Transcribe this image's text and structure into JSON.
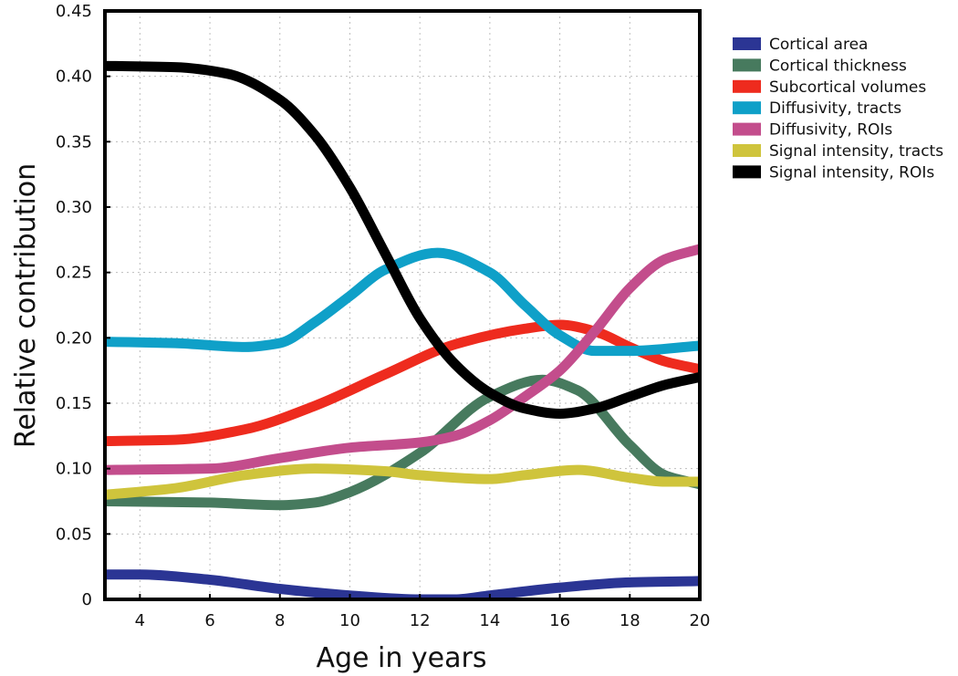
{
  "chart_data": {
    "type": "line",
    "title": "",
    "xlabel": "Age in years",
    "ylabel": "Relative contribution",
    "xlim": [
      3,
      20
    ],
    "ylim": [
      0,
      0.45
    ],
    "grid": true,
    "legend_position": "right",
    "x_ticks": [
      4,
      6,
      8,
      10,
      12,
      14,
      16,
      18,
      20
    ],
    "x_tick_labels": [
      "4",
      "6",
      "8",
      "10",
      "12",
      "14",
      "16",
      "18",
      "20"
    ],
    "y_ticks": [
      0,
      0.05,
      0.1,
      0.15,
      0.2,
      0.25,
      0.3,
      0.35,
      0.4,
      0.45
    ],
    "y_tick_labels": [
      "0",
      "0.05",
      "0.10",
      "0.15",
      "0.20",
      "0.25",
      "0.30",
      "0.35",
      "0.40",
      "0.45"
    ],
    "series": [
      {
        "name": "Cortical area",
        "color": "#2b3594",
        "points": [
          [
            3,
            0.019
          ],
          [
            4,
            0.019
          ],
          [
            6,
            0.015
          ],
          [
            8,
            0.008
          ],
          [
            10,
            0.003
          ],
          [
            12,
            0.0
          ],
          [
            13,
            0.0
          ],
          [
            14,
            0.003
          ],
          [
            16,
            0.009
          ],
          [
            18,
            0.013
          ],
          [
            20,
            0.014
          ]
        ]
      },
      {
        "name": "Cortical thickness",
        "color": "#477a5e",
        "points": [
          [
            3,
            0.075
          ],
          [
            6,
            0.074
          ],
          [
            8,
            0.072
          ],
          [
            9,
            0.074
          ],
          [
            10,
            0.082
          ],
          [
            12,
            0.112
          ],
          [
            14,
            0.155
          ],
          [
            15.5,
            0.168
          ],
          [
            16.5,
            0.16
          ],
          [
            18,
            0.118
          ],
          [
            19,
            0.095
          ],
          [
            20,
            0.088
          ]
        ]
      },
      {
        "name": "Subcortical volumes",
        "color": "#ee2b1e",
        "points": [
          [
            3,
            0.121
          ],
          [
            5,
            0.122
          ],
          [
            7,
            0.13
          ],
          [
            9,
            0.148
          ],
          [
            11,
            0.172
          ],
          [
            13,
            0.195
          ],
          [
            15,
            0.207
          ],
          [
            16,
            0.21
          ],
          [
            17,
            0.205
          ],
          [
            18,
            0.193
          ],
          [
            19,
            0.182
          ],
          [
            20,
            0.176
          ]
        ]
      },
      {
        "name": "Diffusivity, tracts",
        "color": "#0fa0c8",
        "points": [
          [
            3,
            0.197
          ],
          [
            5,
            0.196
          ],
          [
            7,
            0.193
          ],
          [
            8,
            0.196
          ],
          [
            9,
            0.212
          ],
          [
            10,
            0.232
          ],
          [
            11,
            0.252
          ],
          [
            12.5,
            0.265
          ],
          [
            14,
            0.25
          ],
          [
            15,
            0.225
          ],
          [
            16,
            0.202
          ],
          [
            17,
            0.19
          ],
          [
            18,
            0.19
          ],
          [
            20,
            0.194
          ]
        ]
      },
      {
        "name": "Diffusivity, ROIs",
        "color": "#c34d8c",
        "points": [
          [
            3,
            0.099
          ],
          [
            6,
            0.1
          ],
          [
            8,
            0.108
          ],
          [
            10,
            0.116
          ],
          [
            12,
            0.12
          ],
          [
            13,
            0.125
          ],
          [
            14,
            0.137
          ],
          [
            15,
            0.155
          ],
          [
            16,
            0.175
          ],
          [
            17,
            0.205
          ],
          [
            18,
            0.238
          ],
          [
            19,
            0.26
          ],
          [
            20,
            0.268
          ]
        ]
      },
      {
        "name": "Signal intensity, tracts",
        "color": "#cfc43c",
        "points": [
          [
            3,
            0.08
          ],
          [
            5,
            0.085
          ],
          [
            7,
            0.095
          ],
          [
            9,
            0.1
          ],
          [
            11,
            0.098
          ],
          [
            12,
            0.095
          ],
          [
            14,
            0.092
          ],
          [
            15,
            0.095
          ],
          [
            16.5,
            0.099
          ],
          [
            18,
            0.093
          ],
          [
            19,
            0.09
          ],
          [
            20,
            0.09
          ]
        ]
      },
      {
        "name": "Signal intensity, ROIs",
        "color": "#000000",
        "points": [
          [
            3,
            0.408
          ],
          [
            5,
            0.407
          ],
          [
            6.5,
            0.402
          ],
          [
            8,
            0.382
          ],
          [
            9,
            0.355
          ],
          [
            10,
            0.315
          ],
          [
            11,
            0.265
          ],
          [
            12,
            0.215
          ],
          [
            13,
            0.18
          ],
          [
            14,
            0.158
          ],
          [
            15,
            0.146
          ],
          [
            16,
            0.142
          ],
          [
            17,
            0.146
          ],
          [
            18,
            0.155
          ],
          [
            19,
            0.164
          ],
          [
            20,
            0.17
          ]
        ]
      }
    ]
  }
}
